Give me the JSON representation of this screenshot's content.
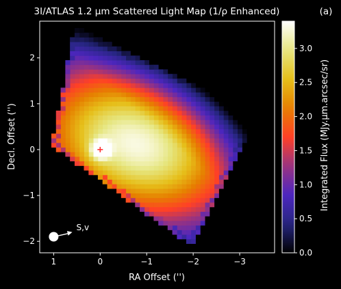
{
  "chart_data": {
    "type": "heatmap",
    "title": "3I/ATLAS 1.2 μm Scattered Light Map (1/ρ Enhanced)",
    "panel_label": "(a)",
    "xlabel": "RA Offset ('')",
    "ylabel": "Decl. Offset ('')",
    "xlim": [
      1.3,
      -3.75
    ],
    "ylim": [
      -2.25,
      2.8
    ],
    "x_ticks": [
      1,
      0,
      -1,
      -2,
      -3
    ],
    "x_tick_labels": [
      "1",
      "0",
      "−1",
      "−2",
      "−3"
    ],
    "y_ticks": [
      2,
      1,
      0,
      -1,
      -2
    ],
    "y_tick_labels": [
      "2",
      "1",
      "0",
      "−1",
      "−2"
    ],
    "colorbar": {
      "label": "Integrated Flux (MJy.μm.arcsec/sr)",
      "range": [
        0.0,
        3.4
      ],
      "ticks": [
        0.0,
        0.5,
        1.0,
        1.5,
        2.0,
        2.5,
        3.0
      ],
      "tick_labels": [
        "0.0",
        "0.5",
        "1.0",
        "1.5",
        "2.0",
        "2.5",
        "3.0"
      ],
      "colormap": "CMRmap"
    },
    "footprint_corners": [
      [
        0.55,
        2.7
      ],
      [
        1.05,
        0.1
      ],
      [
        -1.95,
        -2.1
      ],
      [
        -3.4,
        0.75
      ]
    ],
    "peak_flux": {
      "x": -0.75,
      "y": 0.12,
      "value": 3.3
    },
    "nucleus_marker": {
      "x": 0.0,
      "y": 0.0,
      "symbol": "+",
      "color": "#ff3030"
    },
    "direction_arrow": {
      "label": "S,v",
      "start": [
        1.0,
        -1.9
      ],
      "end": [
        0.6,
        -1.8
      ]
    }
  }
}
